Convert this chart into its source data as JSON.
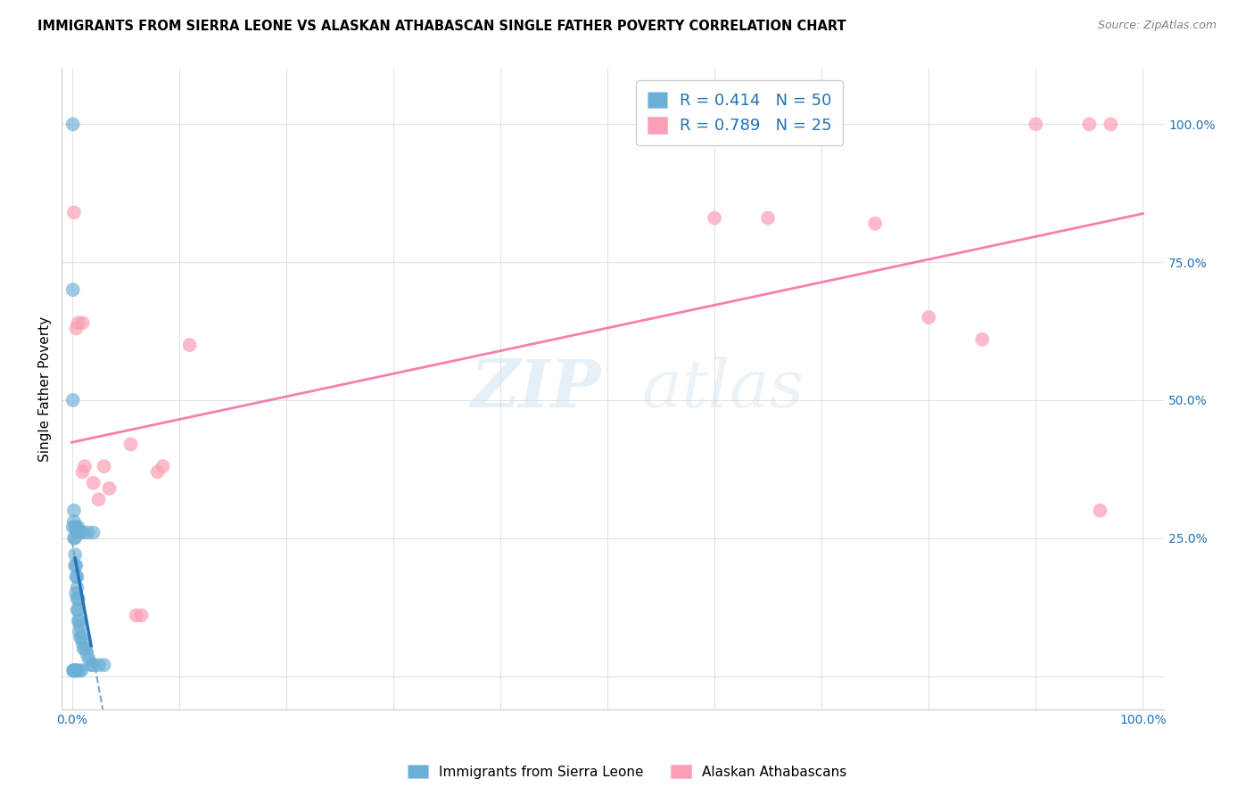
{
  "title": "IMMIGRANTS FROM SIERRA LEONE VS ALASKAN ATHABASCAN SINGLE FATHER POVERTY CORRELATION CHART",
  "source": "Source: ZipAtlas.com",
  "ylabel": "Single Father Poverty",
  "legend_label1": "Immigrants from Sierra Leone",
  "legend_label2": "Alaskan Athabascans",
  "R1": 0.414,
  "N1": 50,
  "R2": 0.789,
  "N2": 25,
  "blue_color": "#6baed6",
  "pink_color": "#fa9fb5",
  "blue_line_color": "#2171b5",
  "pink_line_color": "#f768a1",
  "blue_scatter_x": [
    0.001,
    0.001,
    0.001,
    0.002,
    0.002,
    0.002,
    0.003,
    0.003,
    0.003,
    0.003,
    0.004,
    0.004,
    0.004,
    0.004,
    0.005,
    0.005,
    0.005,
    0.005,
    0.005,
    0.006,
    0.006,
    0.006,
    0.007,
    0.007,
    0.007,
    0.008,
    0.008,
    0.009,
    0.009,
    0.01,
    0.011,
    0.012,
    0.014,
    0.016,
    0.018,
    0.02,
    0.025,
    0.03,
    0.001,
    0.001,
    0.002,
    0.002,
    0.003,
    0.004,
    0.005,
    0.006,
    0.008,
    0.01,
    0.015,
    0.02
  ],
  "blue_scatter_y": [
    1.0,
    0.7,
    0.01,
    0.25,
    0.3,
    0.01,
    0.2,
    0.22,
    0.25,
    0.01,
    0.15,
    0.18,
    0.2,
    0.01,
    0.12,
    0.14,
    0.16,
    0.18,
    0.01,
    0.1,
    0.12,
    0.14,
    0.08,
    0.1,
    0.01,
    0.07,
    0.09,
    0.07,
    0.01,
    0.06,
    0.05,
    0.05,
    0.04,
    0.03,
    0.02,
    0.02,
    0.02,
    0.02,
    0.5,
    0.27,
    0.28,
    0.01,
    0.27,
    0.27,
    0.26,
    0.27,
    0.26,
    0.26,
    0.26,
    0.26
  ],
  "pink_scatter_x": [
    0.002,
    0.004,
    0.006,
    0.01,
    0.012,
    0.02,
    0.025,
    0.03,
    0.035,
    0.055,
    0.06,
    0.065,
    0.08,
    0.085,
    0.6,
    0.65,
    0.75,
    0.8,
    0.85,
    0.9,
    0.95,
    0.96,
    0.97,
    0.01,
    0.11
  ],
  "pink_scatter_y": [
    0.84,
    0.63,
    0.64,
    0.37,
    0.38,
    0.35,
    0.32,
    0.38,
    0.34,
    0.42,
    0.11,
    0.11,
    0.37,
    0.38,
    0.83,
    0.83,
    0.82,
    0.65,
    0.61,
    1.0,
    1.0,
    0.3,
    1.0,
    0.64,
    0.6
  ]
}
